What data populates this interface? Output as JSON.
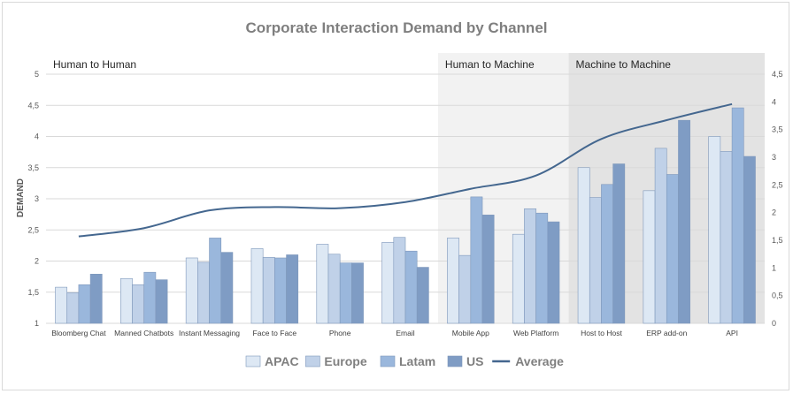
{
  "chart_data": {
    "type": "bar",
    "title": "Corporate Interaction Demand by Channel",
    "ylabel": "DEMAND",
    "ylim": [
      1,
      5
    ],
    "yticks": [
      "1",
      "1,5",
      "2",
      "2,5",
      "3",
      "3,5",
      "4",
      "4,5",
      "5"
    ],
    "y2lim": [
      0,
      4.5
    ],
    "y2ticks": [
      "0",
      "0,5",
      "1",
      "1,5",
      "2",
      "2,5",
      "3",
      "3,5",
      "4",
      "4,5"
    ],
    "categories": [
      "Bloomberg Chat",
      "Manned Chatbots",
      "Instant Messaging",
      "Face to Face",
      "Phone",
      "Email",
      "Mobile App",
      "Web Platform",
      "Host to Host",
      "ERP add-on",
      "API"
    ],
    "regions": [
      {
        "label": "Human to Human",
        "from": 0,
        "to": 5,
        "shade": "#ffffff"
      },
      {
        "label": "Human to Machine",
        "from": 6,
        "to": 7,
        "shade": "#f2f2f2"
      },
      {
        "label": "Machine to Machine",
        "from": 8,
        "to": 10,
        "shade": "#e3e3e3"
      }
    ],
    "series": [
      {
        "name": "APAC",
        "color": "#dde8f4",
        "values": [
          1.58,
          1.72,
          2.05,
          2.2,
          2.27,
          2.3,
          2.37,
          2.43,
          3.5,
          3.13,
          4.0
        ]
      },
      {
        "name": "Europe",
        "color": "#c0d1e8",
        "values": [
          1.49,
          1.62,
          1.98,
          2.06,
          2.11,
          2.38,
          2.09,
          2.84,
          3.02,
          3.81,
          3.76
        ]
      },
      {
        "name": "Latam",
        "color": "#9ab7dc",
        "values": [
          1.62,
          1.82,
          2.37,
          2.05,
          1.97,
          2.16,
          3.03,
          2.77,
          3.23,
          3.39,
          4.46
        ]
      },
      {
        "name": "US",
        "color": "#7f9cc4",
        "values": [
          1.79,
          1.7,
          2.14,
          2.1,
          1.97,
          1.9,
          2.74,
          2.63,
          3.56,
          4.26,
          3.68
        ]
      }
    ],
    "average": {
      "name": "Average",
      "color": "#44678f",
      "values": [
        1.57,
        1.72,
        2.04,
        2.1,
        2.08,
        2.19,
        2.43,
        2.67,
        3.33,
        3.67,
        3.96
      ]
    },
    "legend_position": "bottom"
  }
}
